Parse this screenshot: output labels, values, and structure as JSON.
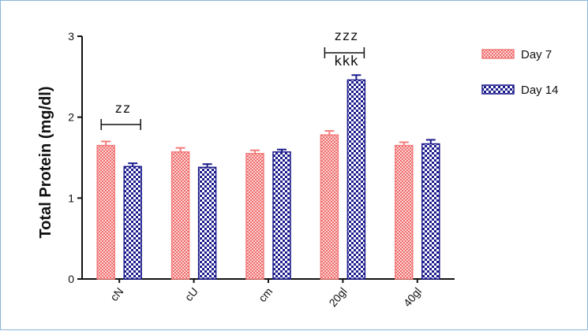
{
  "chart_data": {
    "type": "bar",
    "ylabel": "Total Protein  (mg/dl)",
    "xlabel": "",
    "ylim": [
      0,
      3
    ],
    "yticks": [
      "0",
      "1",
      "2",
      "3"
    ],
    "categories": [
      "cN",
      "cU",
      "cm",
      "20gl",
      "40gl"
    ],
    "series": [
      {
        "name": "Day 7",
        "values": [
          1.65,
          1.57,
          1.55,
          1.78,
          1.65
        ],
        "errors": [
          0.05,
          0.05,
          0.04,
          0.05,
          0.04
        ],
        "color": "#f47c7c",
        "pattern": "red-check"
      },
      {
        "name": "Day 14",
        "values": [
          1.39,
          1.38,
          1.57,
          2.46,
          1.67
        ],
        "errors": [
          0.04,
          0.04,
          0.03,
          0.06,
          0.05
        ],
        "color": "#1c1c8c",
        "pattern": "blue-check"
      }
    ],
    "annotations": [
      {
        "text": "zz",
        "category_index": 0
      },
      {
        "text": "zzz",
        "category_index": 3
      },
      {
        "text": "kkk",
        "category_index": 3
      }
    ],
    "legend_position": "top-right",
    "grid": false
  }
}
